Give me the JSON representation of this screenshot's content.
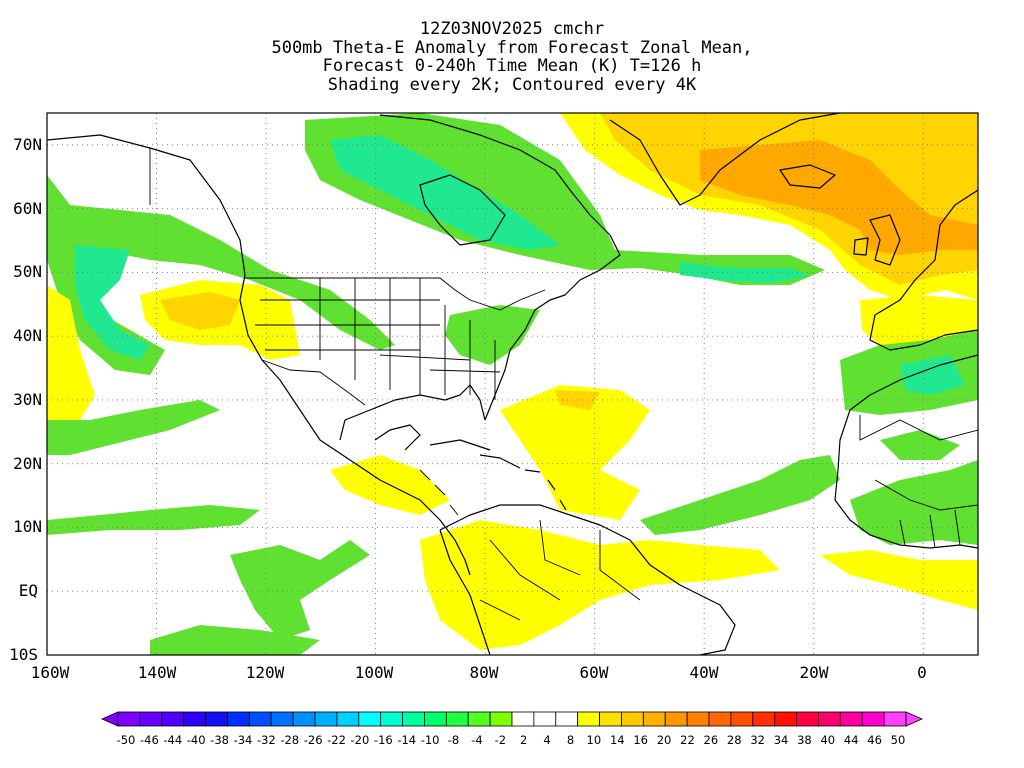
{
  "title": {
    "line1": "12Z03NOV2025 cmchr",
    "line2": "500mb Theta-E Anomaly from Forecast Zonal Mean,",
    "line3": "Forecast 0-240h Time Mean (K) T=126 h",
    "line4": "Shading every 2K; Contoured every 4K"
  },
  "map": {
    "projection": "cylindrical-equidistant",
    "lon_range": [
      -160,
      10
    ],
    "lat_range": [
      -10,
      75
    ],
    "lat_labels": [
      "70N",
      "60N",
      "50N",
      "40N",
      "30N",
      "20N",
      "10N",
      "EQ",
      "10S"
    ],
    "lat_values": [
      70,
      60,
      50,
      40,
      30,
      20,
      10,
      0,
      -10
    ],
    "lon_labels": [
      "160W",
      "140W",
      "120W",
      "100W",
      "80W",
      "60W",
      "40W",
      "20W",
      "0"
    ],
    "lon_values": [
      -160,
      -140,
      -120,
      -100,
      -80,
      -60,
      -40,
      -20,
      0
    ],
    "gridlines": "dotted"
  },
  "colorbar": {
    "labels": [
      "-50",
      "-46",
      "-44",
      "-40",
      "-38",
      "-34",
      "-32",
      "-28",
      "-26",
      "-22",
      "-20",
      "-16",
      "-14",
      "-10",
      "-8",
      "-4",
      "-2",
      "2",
      "4",
      "8",
      "10",
      "14",
      "16",
      "20",
      "22",
      "26",
      "28",
      "32",
      "34",
      "38",
      "40",
      "44",
      "46",
      "50"
    ],
    "colors": [
      "#8000ff",
      "#6a00ff",
      "#5000ff",
      "#3000ff",
      "#1010f0",
      "#0030ff",
      "#0050ff",
      "#0070ff",
      "#0090ff",
      "#00b0ff",
      "#00d0ff",
      "#00ffff",
      "#00ffd0",
      "#00ffa0",
      "#00ff70",
      "#20ff40",
      "#50ff20",
      "#80ff00",
      "#ffffff",
      "#ffffff",
      "#ffffff",
      "#ffff00",
      "#ffe000",
      "#ffc800",
      "#ffb000",
      "#ff9800",
      "#ff8000",
      "#ff6800",
      "#ff5000",
      "#ff3000",
      "#ff1000",
      "#ff0040",
      "#ff0070",
      "#ff00a0",
      "#ff00d0",
      "#ff40ff"
    ]
  },
  "shading": {
    "green": "#60e030",
    "teal": "#20e890",
    "yellow": "#ffff00",
    "gold": "#ffd400",
    "orange": "#ffa800"
  }
}
